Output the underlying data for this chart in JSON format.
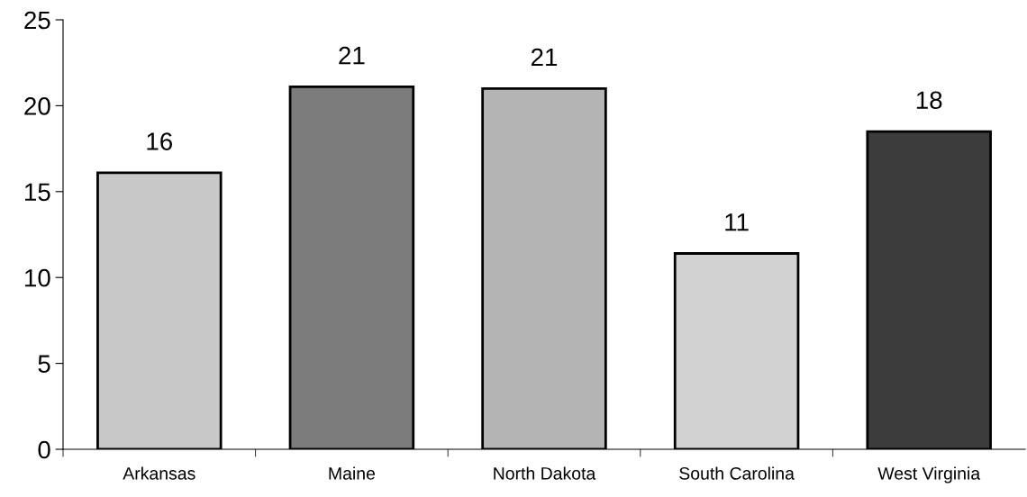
{
  "chart_data": {
    "type": "bar",
    "categories": [
      "Arkansas",
      "Maine",
      "North Dakota",
      "South Carolina",
      "West Virginia"
    ],
    "values": [
      16.1,
      21.1,
      21.0,
      11.4,
      18.5
    ],
    "value_labels": [
      "16",
      "21",
      "21",
      "11",
      "18"
    ],
    "colors": [
      "#c8c8c8",
      "#7c7c7c",
      "#b4b4b4",
      "#d2d2d2",
      "#3c3c3c"
    ],
    "ylim": [
      0,
      25
    ],
    "yticks": [
      0,
      5,
      10,
      15,
      20,
      25
    ],
    "grid": false
  }
}
